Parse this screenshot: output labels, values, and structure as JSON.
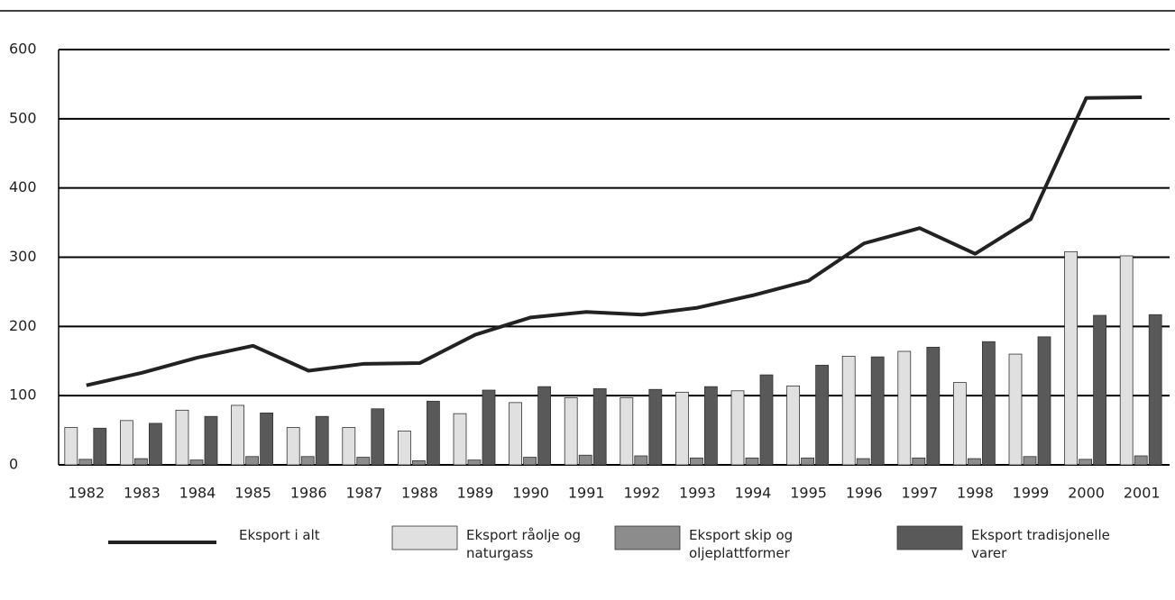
{
  "chart_data": {
    "type": "bar",
    "categories": [
      "1982",
      "1983",
      "1984",
      "1985",
      "1986",
      "1987",
      "1988",
      "1989",
      "1990",
      "1991",
      "1992",
      "1993",
      "1994",
      "1995",
      "1996",
      "1997",
      "1998",
      "1999",
      "2000",
      "2001"
    ],
    "series": [
      {
        "name": "Eksport i alt",
        "type": "line",
        "color": "#222222",
        "values": [
          115,
          133,
          155,
          172,
          136,
          146,
          147,
          188,
          213,
          221,
          217,
          227,
          245,
          266,
          320,
          342,
          305,
          355,
          530,
          531
        ]
      },
      {
        "name": "Eksport råolje og naturgass",
        "type": "bar",
        "color": "#e0e0e0",
        "values": [
          54,
          64,
          79,
          86,
          54,
          54,
          49,
          74,
          90,
          97,
          97,
          105,
          107,
          114,
          157,
          164,
          119,
          160,
          308,
          302
        ]
      },
      {
        "name": "Eksport skip og oljeplattformer",
        "type": "bar",
        "color": "#8c8c8c",
        "values": [
          8,
          9,
          7,
          12,
          12,
          11,
          6,
          7,
          11,
          14,
          13,
          10,
          10,
          10,
          9,
          10,
          9,
          12,
          8,
          13
        ]
      },
      {
        "name": "Eksport tradisjonelle varer",
        "type": "bar",
        "color": "#595959",
        "values": [
          53,
          60,
          70,
          75,
          70,
          81,
          92,
          108,
          113,
          110,
          109,
          113,
          130,
          144,
          156,
          170,
          178,
          185,
          216,
          217
        ]
      }
    ],
    "ylim": [
      0,
      600
    ],
    "yticks": [
      0,
      100,
      200,
      300,
      400,
      500,
      600
    ],
    "grid": true
  }
}
